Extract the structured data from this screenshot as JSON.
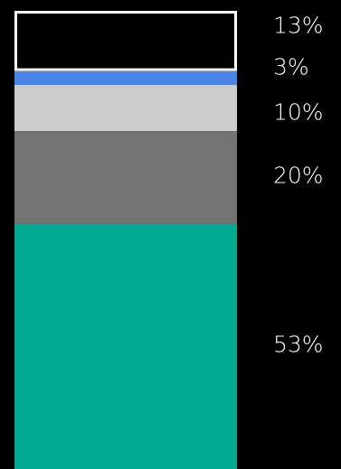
{
  "chart_data": {
    "type": "bar",
    "stacked": true,
    "orientation": "vertical",
    "title": "",
    "xlabel": "",
    "ylabel": "",
    "ylim": [
      0,
      100
    ],
    "grid": false,
    "legend": "none",
    "segments_top_to_bottom": [
      {
        "value": 13,
        "label": "13%",
        "color": "#000000",
        "outline": "#ffffff"
      },
      {
        "value": 3,
        "label": "3%",
        "color": "#4a86e8"
      },
      {
        "value": 10,
        "label": "10%",
        "color": "#cccccc"
      },
      {
        "value": 20,
        "label": "20%",
        "color": "#737373"
      },
      {
        "value": 53,
        "label": "53%",
        "color": "#00a88f"
      }
    ]
  },
  "colors": {
    "background": "#000000",
    "label_text": "#ffffff"
  }
}
